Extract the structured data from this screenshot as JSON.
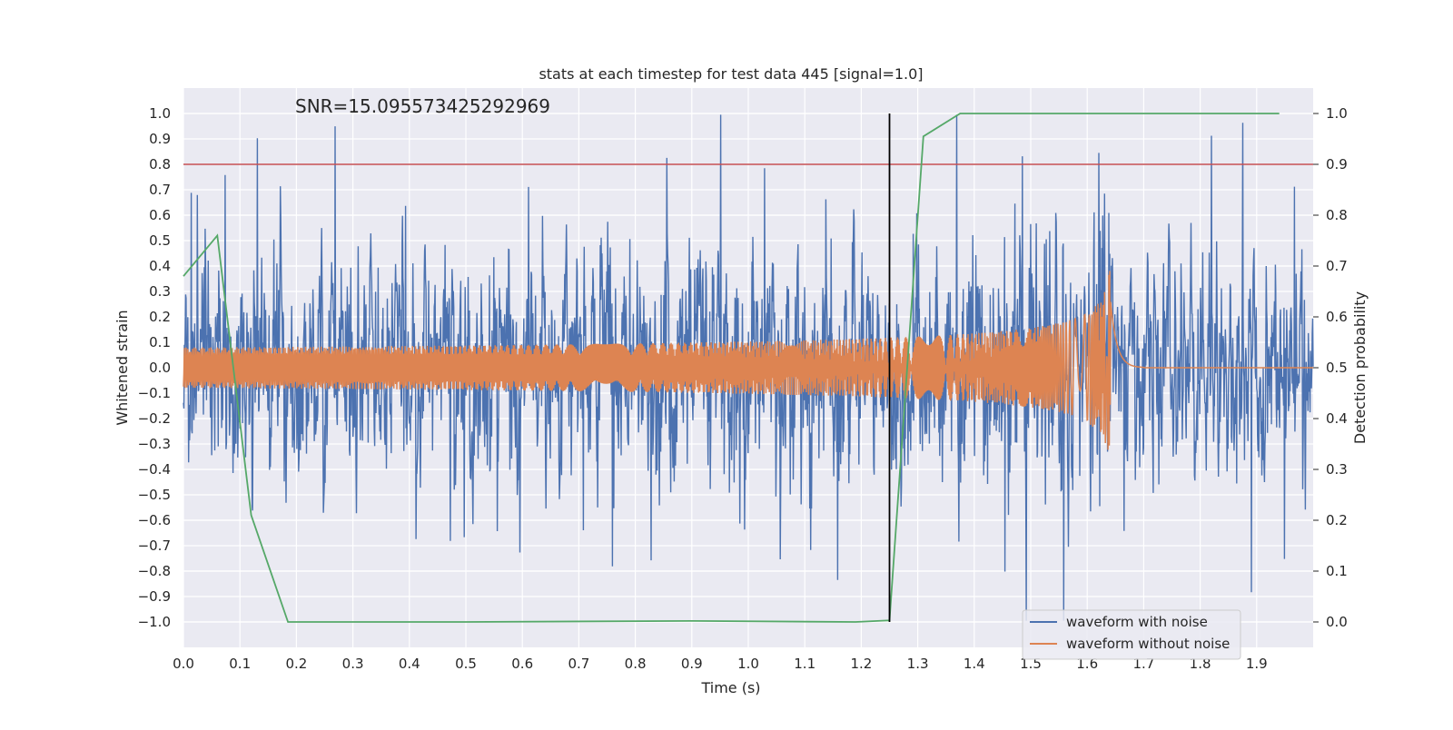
{
  "chart_data": {
    "type": "line",
    "title": "stats at each timestep for test data 445 [signal=1.0]",
    "annotation": "SNR=15.095573425292969",
    "xlabel": "Time (s)",
    "ylabel_left": "Whitened strain",
    "ylabel_right": "Detection probability",
    "xlim": [
      0.0,
      2.0
    ],
    "ylim_left": [
      -1.1,
      1.1
    ],
    "ylim_right": [
      -0.05,
      1.05
    ],
    "x_ticks": [
      "0.0",
      "0.1",
      "0.2",
      "0.3",
      "0.4",
      "0.5",
      "0.6",
      "0.7",
      "0.8",
      "0.9",
      "1.0",
      "1.1",
      "1.2",
      "1.3",
      "1.4",
      "1.5",
      "1.6",
      "1.7",
      "1.8",
      "1.9"
    ],
    "y_ticks_left": [
      "1.0",
      "0.9",
      "0.8",
      "0.7",
      "0.6",
      "0.5",
      "0.4",
      "0.3",
      "0.2",
      "0.1",
      "0.0",
      "−0.1",
      "−0.2",
      "−0.3",
      "−0.4",
      "−0.5",
      "−0.6",
      "−0.7",
      "−0.8",
      "−0.9",
      "−1.0"
    ],
    "y_ticks_right": [
      "1.0",
      "0.9",
      "0.8",
      "0.7",
      "0.6",
      "0.5",
      "0.4",
      "0.3",
      "0.2",
      "0.1",
      "0.0"
    ],
    "grid": true,
    "legend_position": "bottom-right",
    "series": [
      {
        "name": "waveform with noise",
        "color": "#4c72b0",
        "axis": "left",
        "description_range": [
          -1.0,
          1.0
        ]
      },
      {
        "name": "waveform without noise",
        "color": "#dd8452",
        "axis": "left",
        "end_time": 1.64
      },
      {
        "name": "detection probability",
        "color": "#55a868",
        "axis": "right",
        "x": [
          0.0,
          0.06,
          0.12,
          0.185,
          0.5,
          0.9,
          1.19,
          1.25,
          1.31,
          1.375,
          1.6,
          1.94
        ],
        "values": [
          0.68,
          0.76,
          0.21,
          0.0,
          0.0,
          0.002,
          0.0,
          0.003,
          0.955,
          1.0,
          1.0,
          1.0
        ]
      }
    ],
    "threshold_line": {
      "value": 0.8,
      "axis": "left",
      "color": "#c44e52"
    },
    "vertical_marker": {
      "x": 1.25,
      "color": "#000000"
    }
  }
}
